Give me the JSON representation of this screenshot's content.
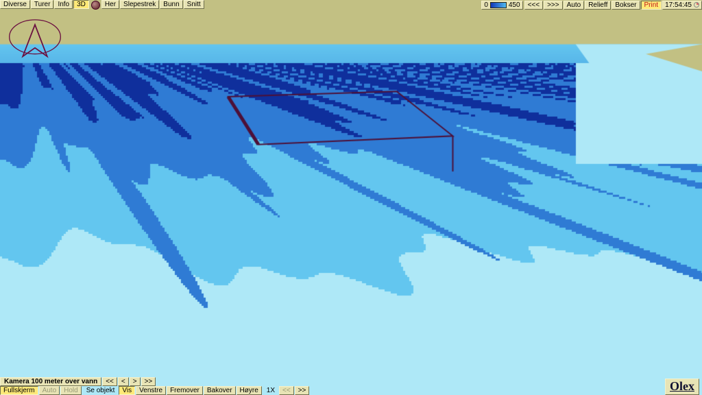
{
  "top_menu": {
    "left": [
      {
        "label": "Diverse",
        "active": false
      },
      {
        "label": "Turer",
        "active": false
      },
      {
        "label": "Info",
        "active": false
      },
      {
        "label": "3D",
        "active": true
      },
      {
        "label": "__circle__",
        "active": false
      },
      {
        "label": "Her",
        "active": false
      },
      {
        "label": "Slepestrek",
        "active": false
      },
      {
        "label": "Bunn",
        "active": false
      },
      {
        "label": "Snitt",
        "active": false
      }
    ],
    "depth": {
      "min": "0",
      "max": "450"
    },
    "right": [
      {
        "label": "<<<",
        "active": false
      },
      {
        "label": ">>>",
        "active": false
      },
      {
        "label": "Auto",
        "active": false
      },
      {
        "label": "Relieff",
        "active": false
      },
      {
        "label": "Bokser",
        "active": false
      },
      {
        "label": "Print",
        "active": true,
        "red": true
      }
    ],
    "clock": "17:54:45"
  },
  "bottom": {
    "row1": {
      "label": "Kamera 100 meter over vann",
      "buttons": [
        "<<",
        "<",
        ">",
        ">>"
      ]
    },
    "row2": {
      "first": {
        "label": "Fullskjerm",
        "active": true
      },
      "disabled": [
        "Auto",
        "Hold"
      ],
      "text": "Se objekt",
      "vis": {
        "label": "Vis",
        "active": true
      },
      "rest": [
        "Venstre",
        "Fremover",
        "Bakover",
        "Høyre"
      ],
      "speed_label": "1X",
      "speed": [
        "<<",
        ">>"
      ]
    },
    "logo": "Olex"
  },
  "terrain": {
    "sky_color": "#c2c083",
    "horizon_y": 0.09,
    "shore_y": 0.14,
    "palette": {
      "shallow": "#aee8f7",
      "mid": "#63c6ef",
      "deep": "#2f7bd4",
      "shadow": "#0f2f9c"
    },
    "box_overlay": {
      "color": "#4d1038",
      "width": 2,
      "pts": [
        [
          0.325,
          0.226
        ],
        [
          0.565,
          0.212
        ],
        [
          0.645,
          0.328
        ],
        [
          0.368,
          0.35
        ]
      ],
      "drop": [
        [
          0.645,
          0.328
        ],
        [
          0.645,
          0.42
        ]
      ]
    }
  }
}
